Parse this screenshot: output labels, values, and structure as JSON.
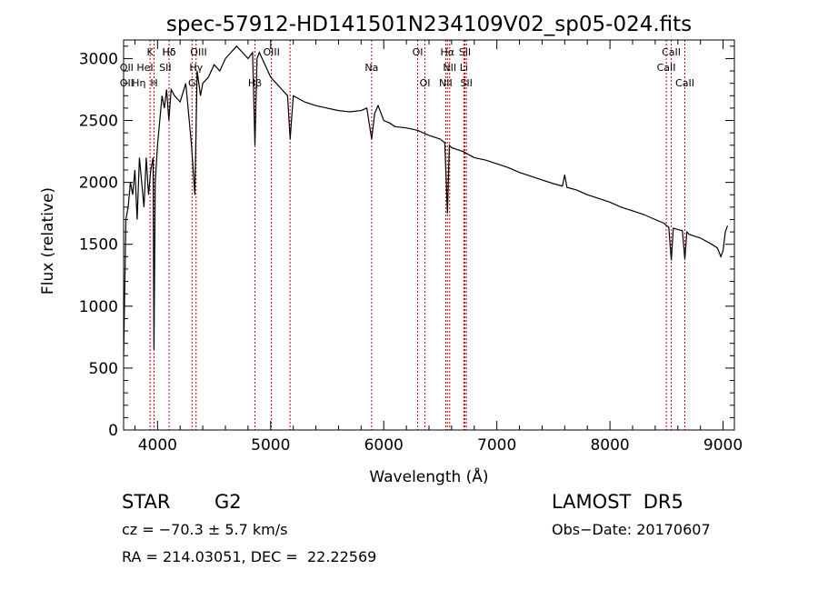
{
  "chart_data": {
    "type": "line",
    "title": "spec-57912-HD141501N234109V02_sp05-024.fits",
    "xlabel": "Wavelength (Å)",
    "ylabel": "Flux (relative)",
    "xlim": [
      3700,
      9100
    ],
    "ylim": [
      0,
      3150
    ],
    "x_ticks": [
      4000,
      5000,
      6000,
      7000,
      8000,
      9000
    ],
    "y_ticks": [
      0,
      500,
      1000,
      1500,
      2000,
      2500,
      3000
    ],
    "grid": false,
    "legend": "none",
    "series": [
      {
        "color": "#000000",
        "x": [
          3700,
          3720,
          3740,
          3760,
          3780,
          3800,
          3820,
          3840,
          3860,
          3880,
          3900,
          3920,
          3940,
          3960,
          3968,
          3980,
          4000,
          4020,
          4040,
          4060,
          4080,
          4100,
          4120,
          4150,
          4200,
          4250,
          4280,
          4300,
          4330,
          4350,
          4380,
          4400,
          4450,
          4500,
          4550,
          4600,
          4650,
          4700,
          4750,
          4800,
          4840,
          4861,
          4880,
          4900,
          4950,
          5000,
          5050,
          5100,
          5150,
          5172,
          5200,
          5300,
          5400,
          5500,
          5600,
          5700,
          5800,
          5850,
          5893,
          5920,
          5950,
          6000,
          6050,
          6100,
          6200,
          6300,
          6400,
          6500,
          6540,
          6563,
          6580,
          6600,
          6700,
          6800,
          6900,
          7000,
          7100,
          7200,
          7300,
          7400,
          7500,
          7580,
          7600,
          7620,
          7700,
          7800,
          7900,
          8000,
          8100,
          8200,
          8300,
          8400,
          8480,
          8500,
          8520,
          8542,
          8560,
          8600,
          8640,
          8662,
          8680,
          8700,
          8800,
          8900,
          8950,
          8980,
          9000,
          9020,
          9040
        ],
        "y": [
          600,
          1700,
          1800,
          2000,
          1900,
          2100,
          1700,
          2200,
          2000,
          1800,
          2200,
          1900,
          2100,
          2200,
          650,
          2000,
          2300,
          2500,
          2700,
          2600,
          2750,
          2500,
          2750,
          2700,
          2650,
          2800,
          2500,
          2300,
          1900,
          2900,
          2700,
          2800,
          2850,
          2950,
          2900,
          3000,
          3050,
          3100,
          3050,
          3000,
          3050,
          2300,
          3000,
          3050,
          2950,
          2850,
          2800,
          2750,
          2700,
          2350,
          2700,
          2650,
          2620,
          2600,
          2580,
          2570,
          2580,
          2600,
          2350,
          2560,
          2620,
          2500,
          2480,
          2450,
          2440,
          2420,
          2380,
          2350,
          2320,
          1750,
          2300,
          2280,
          2250,
          2200,
          2180,
          2150,
          2120,
          2080,
          2050,
          2020,
          1990,
          1970,
          2060,
          1960,
          1940,
          1900,
          1870,
          1840,
          1800,
          1770,
          1740,
          1700,
          1670,
          1650,
          1640,
          1370,
          1630,
          1620,
          1610,
          1380,
          1600,
          1580,
          1550,
          1500,
          1470,
          1400,
          1450,
          1600,
          1650
        ]
      }
    ],
    "line_markers": [
      {
        "label": "Hδ",
        "x": 4102
      },
      {
        "label": "K",
        "x": 3934
      },
      {
        "label": "Hδ",
        "x": 4102
      },
      {
        "label": "OII",
        "x": 3727
      },
      {
        "label": "HeI",
        "x": 3889
      },
      {
        "label": "SII",
        "x": 4069
      },
      {
        "label": "OII",
        "x": 3727
      },
      {
        "label": "Hη",
        "x": 3835
      },
      {
        "label": "H",
        "x": 3969
      },
      {
        "label": "OIII",
        "x": 4363
      },
      {
        "label": "Hγ",
        "x": 4341
      },
      {
        "label": "G",
        "x": 4305
      },
      {
        "label": "OIII",
        "x": 5007
      },
      {
        "label": "Hβ",
        "x": 4861
      },
      {
        "label": "Na",
        "x": 5893
      },
      {
        "label": "OI",
        "x": 6300
      },
      {
        "label": "OI",
        "x": 6364
      },
      {
        "label": "Hα",
        "x": 6563
      },
      {
        "label": "SII",
        "x": 6717
      },
      {
        "label": "NII",
        "x": 6583
      },
      {
        "label": "Li",
        "x": 6708
      },
      {
        "label": "NII",
        "x": 6548
      },
      {
        "label": "SII",
        "x": 6731
      },
      {
        "label": "CaII",
        "x": 8542
      },
      {
        "label": "CaII",
        "x": 8498
      },
      {
        "label": "CaII",
        "x": 8662
      }
    ],
    "extra_lines_x": [
      3934,
      3969,
      4102,
      4305,
      4341,
      4861,
      5007,
      5172,
      5893,
      6300,
      6364,
      6548,
      6563,
      6583,
      6708,
      6717,
      6731,
      8498,
      8542,
      8662
    ]
  },
  "info": {
    "object_type": "STAR",
    "subclass": "G2",
    "survey": "LAMOST  DR5",
    "cz": "cz = −70.3 ± 5.7 km/s",
    "obs_date": "Obs−Date: 20170607",
    "coords": "RA = 214.03051, DEC =  22.22569"
  }
}
